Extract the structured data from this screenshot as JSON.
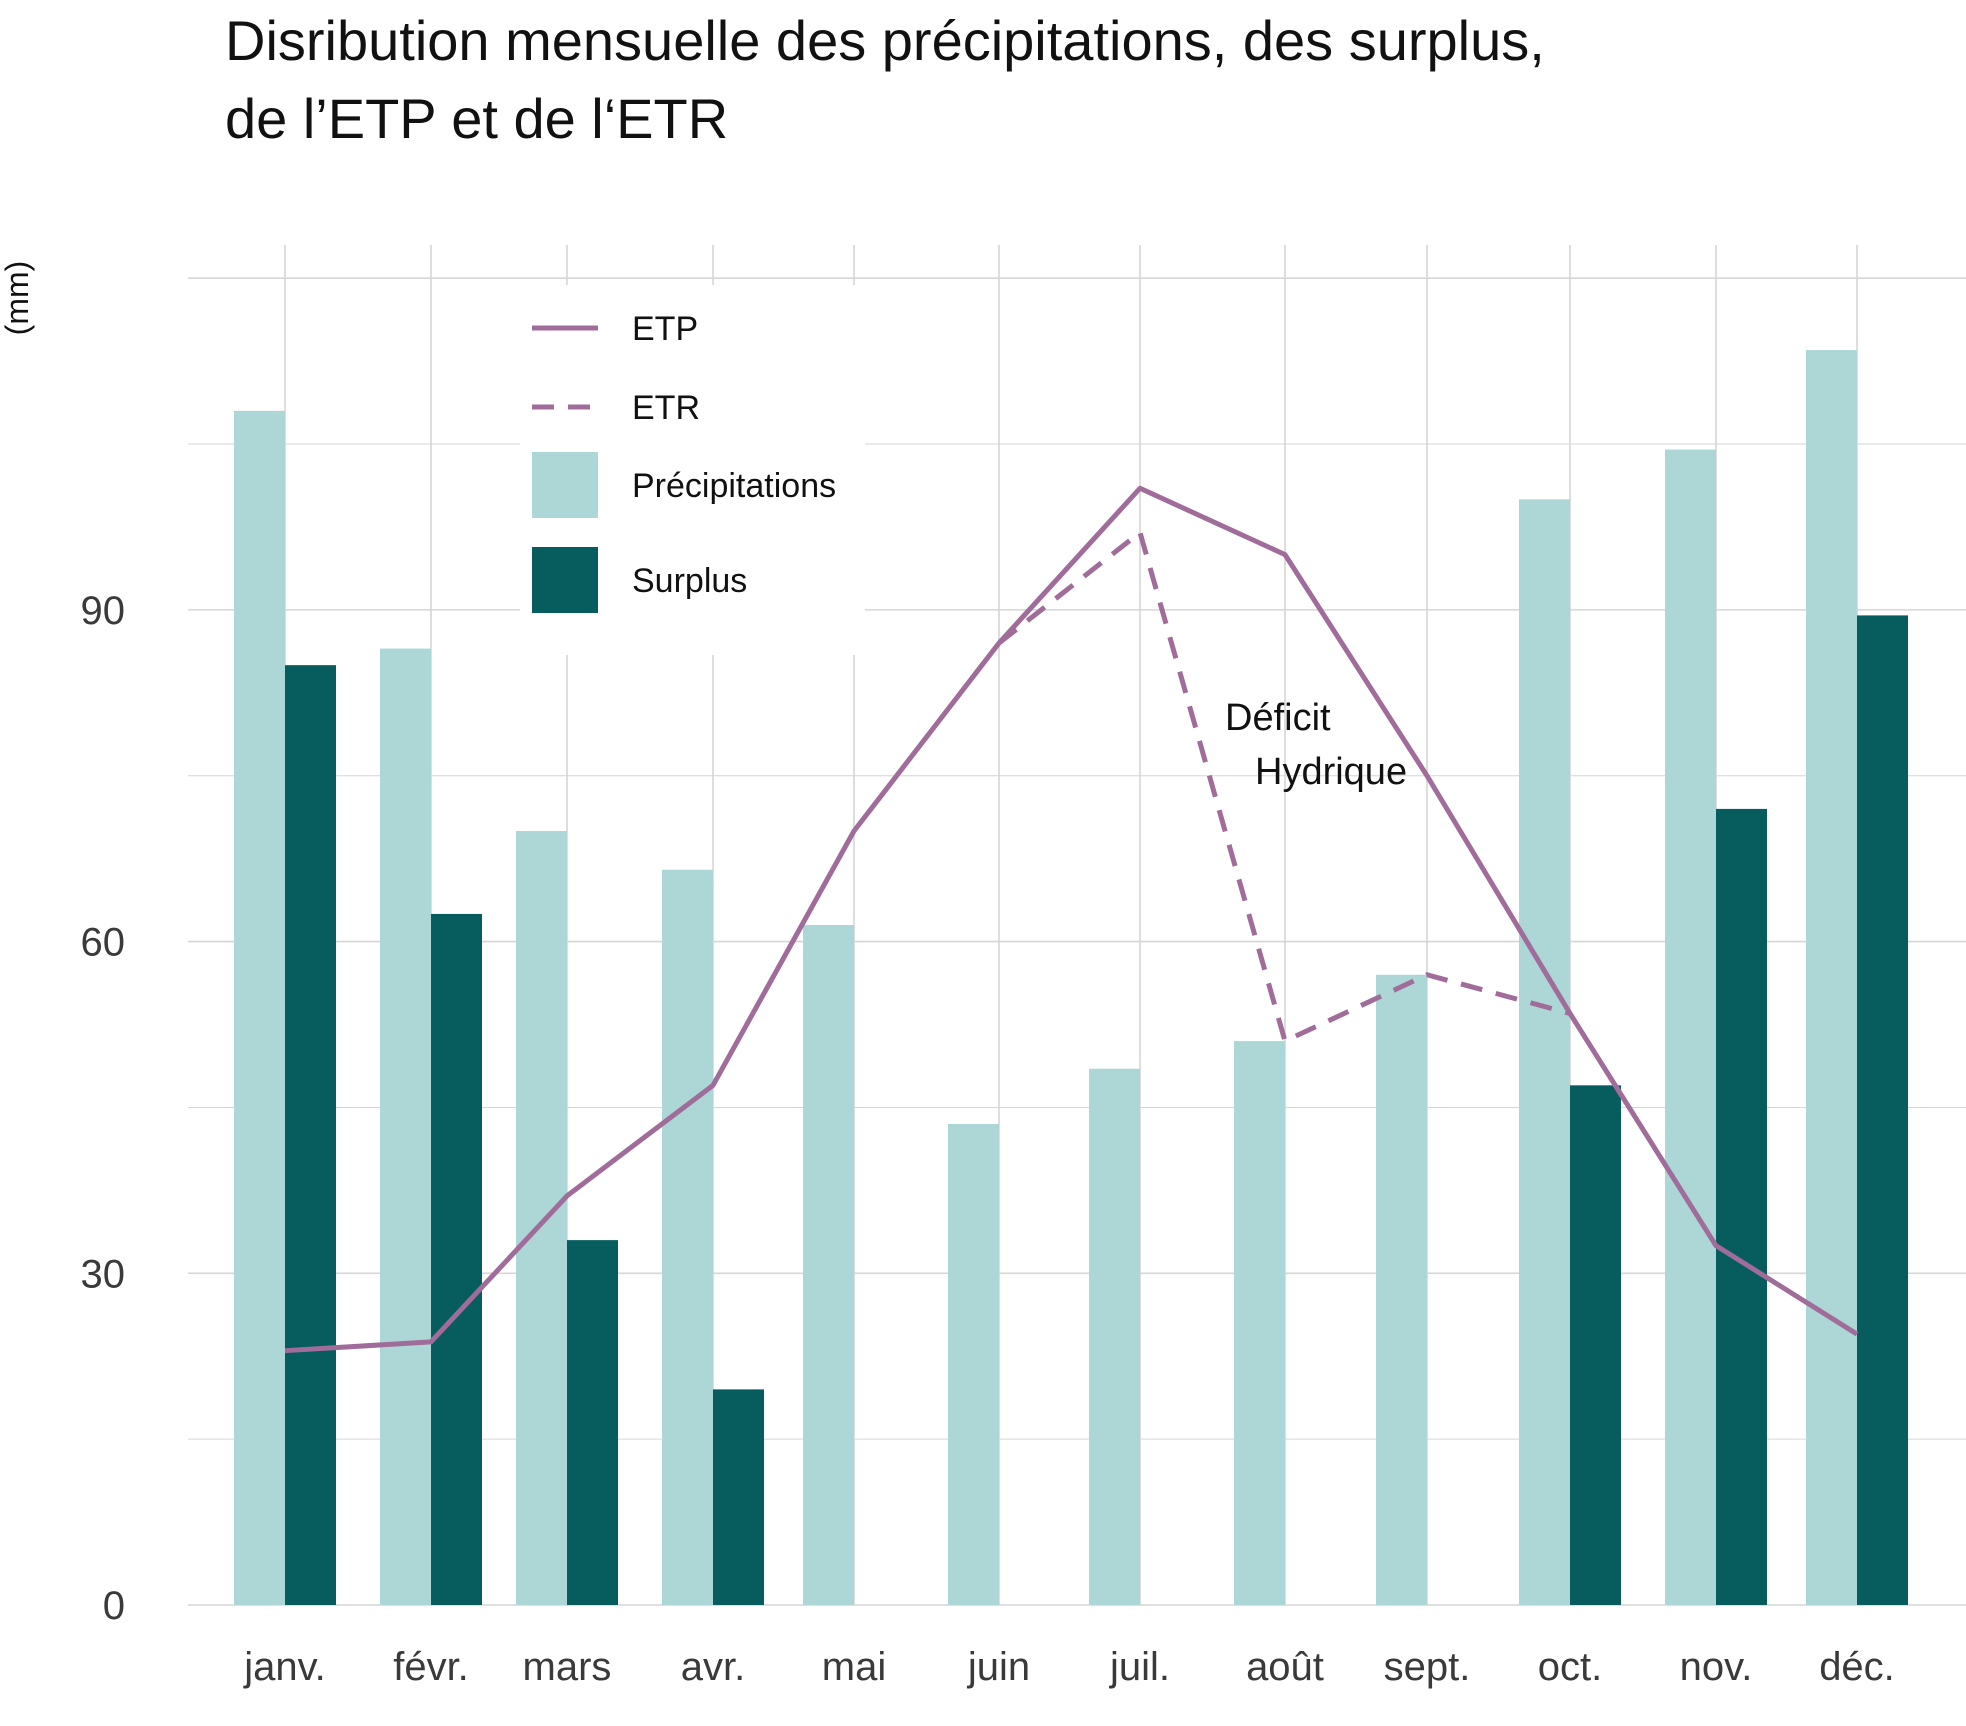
{
  "chart_data": {
    "type": "bar",
    "title_lines": [
      "Disribution mensuelle des précipitations, des surplus,",
      "de l’ETP et de l‘ETR"
    ],
    "ylabel": "(mm)",
    "xlabel": "",
    "ylim": [
      0,
      123
    ],
    "yticks": [
      0,
      30,
      60,
      90
    ],
    "grid": true,
    "legend_position": "top-left",
    "categories": [
      "janv.",
      "févr.",
      "mars",
      "avr.",
      "mai",
      "juin",
      "juil.",
      "août",
      "sept.",
      "oct.",
      "nov.",
      "déc."
    ],
    "series": [
      {
        "name": "Précipitations",
        "kind": "bar",
        "color": "#add7d6",
        "values": [
          108,
          86.5,
          70,
          66.5,
          61.5,
          43.5,
          48.5,
          51,
          57,
          100,
          104.5,
          113.5
        ]
      },
      {
        "name": "Surplus",
        "kind": "bar",
        "color": "#075c5d",
        "values": [
          85,
          0,
          33,
          19.5,
          0,
          0,
          0,
          0,
          0,
          47,
          72,
          89.5
        ]
      },
      {
        "name": "ETP",
        "kind": "line",
        "color": "#a06c9a",
        "dash": "solid",
        "values": [
          23,
          23.8,
          37,
          47,
          70,
          87,
          101,
          95,
          75,
          53.5,
          32.5,
          24.5
        ]
      },
      {
        "name": "ETR",
        "kind": "line",
        "color": "#a06c9a",
        "dash": "dashed",
        "values": [
          null,
          null,
          null,
          null,
          null,
          87,
          97,
          51,
          57,
          53.5,
          null,
          null
        ]
      }
    ],
    "surplus_offset_months": [
      "févr."
    ],
    "surplus_offset_value": 62.5,
    "legend": [
      "ETP",
      "ETR",
      "Précipitations",
      "Surplus"
    ],
    "annotation": {
      "lines": [
        "Déficit",
        "Hydrique"
      ]
    }
  }
}
